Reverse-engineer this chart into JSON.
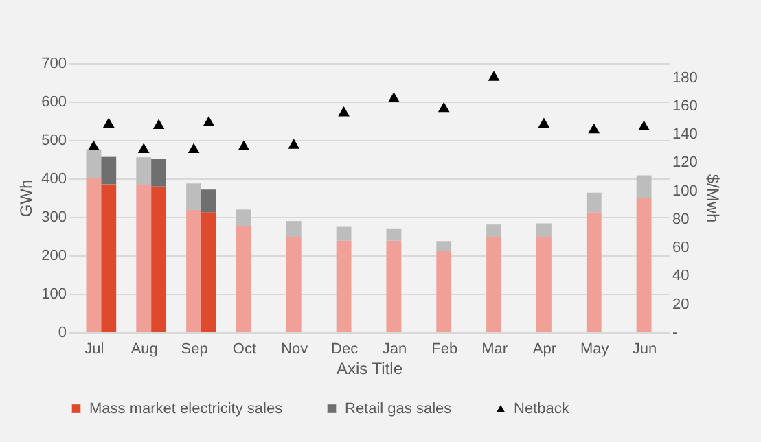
{
  "chart_data": {
    "type": "bar",
    "categories": [
      "Jul",
      "Aug",
      "Sep",
      "Oct",
      "Nov",
      "Dec",
      "Jan",
      "Feb",
      "Mar",
      "Apr",
      "May",
      "Jun"
    ],
    "xlabel": "Axis Title",
    "ylabel": "GWh",
    "y2label": "$/Mwh",
    "ylim": [
      0,
      700
    ],
    "yticks": [
      0,
      100,
      200,
      300,
      400,
      500,
      600,
      700
    ],
    "y2lim": [
      0,
      190
    ],
    "y2ticks": [
      {
        "value": 0,
        "label": "-"
      },
      20,
      40,
      60,
      80,
      100,
      120,
      140,
      160,
      180
    ],
    "grid": "y",
    "legend": "bottom",
    "marker": "triangle",
    "series": [
      {
        "color": "#f0a096",
        "base": [
          0,
          0,
          0,
          0,
          0,
          0,
          0,
          0,
          0,
          0,
          0,
          0
        ],
        "values": [
          400,
          383,
          318,
          276,
          248,
          238,
          238,
          212,
          248,
          248,
          312,
          348
        ]
      },
      {
        "color": "#bdbdbd",
        "base": [
          400,
          383,
          318,
          276,
          248,
          238,
          238,
          212,
          248,
          248,
          312,
          348
        ],
        "values": [
          76,
          72,
          69,
          43,
          41,
          36,
          32,
          25,
          32,
          35,
          51,
          60
        ]
      },
      {
        "name": "Mass market electricity sales",
        "color": "#e04a2c",
        "base": [
          0,
          0,
          0,
          null,
          null,
          null,
          null,
          null,
          null,
          null,
          null,
          null
        ],
        "values": [
          385,
          379,
          312,
          null,
          null,
          null,
          null,
          null,
          null,
          null,
          null,
          null
        ]
      },
      {
        "name": "Retail gas sales",
        "color": "#6f6f6f",
        "base": [
          385,
          379,
          312,
          null,
          null,
          null,
          null,
          null,
          null,
          null,
          null,
          null
        ],
        "values": [
          71,
          73,
          59,
          null,
          null,
          null,
          null,
          null,
          null,
          null,
          null,
          null
        ]
      },
      {
        "name": "Netback",
        "type": "scatter",
        "axis": "y2",
        "color": "#000000",
        "values": [
          132,
          130,
          130,
          132,
          133,
          156,
          166,
          159,
          181,
          148,
          144,
          146
        ]
      },
      {
        "type": "scatter",
        "axis": "y2",
        "color": "#000000",
        "values": [
          148,
          147,
          149,
          null,
          null,
          null,
          null,
          null,
          null,
          null,
          null,
          null
        ]
      }
    ]
  }
}
